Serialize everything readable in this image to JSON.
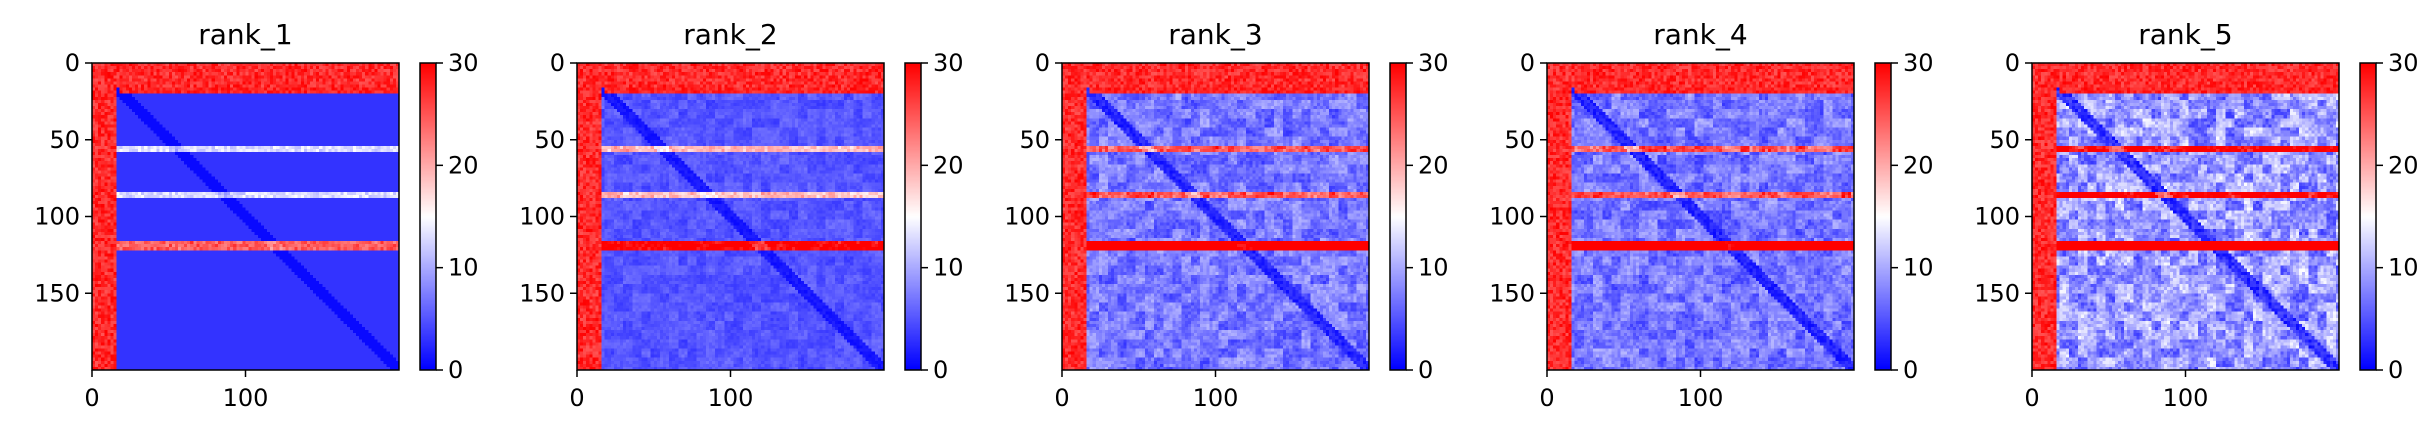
{
  "chart_data": [
    {
      "type": "heatmap",
      "title": "rank_1",
      "size": 200,
      "colormap": "bwr",
      "clim": [
        0,
        30
      ],
      "xticks": [
        0,
        100
      ],
      "yticks": [
        0,
        50,
        100,
        150
      ],
      "colorbar_ticks": [
        0,
        10,
        20,
        30
      ],
      "domain_boundaries": [
        22,
        55,
        85,
        118
      ],
      "intensity": 0
    },
    {
      "type": "heatmap",
      "title": "rank_2",
      "size": 200,
      "colormap": "bwr",
      "clim": [
        0,
        30
      ],
      "xticks": [
        0,
        100
      ],
      "yticks": [
        0,
        50,
        100,
        150
      ],
      "colorbar_ticks": [
        0,
        10,
        20,
        30
      ],
      "domain_boundaries": [
        22,
        55,
        85,
        118
      ],
      "intensity": 1
    },
    {
      "type": "heatmap",
      "title": "rank_3",
      "size": 200,
      "colormap": "bwr",
      "clim": [
        0,
        30
      ],
      "xticks": [
        0,
        100
      ],
      "yticks": [
        0,
        50,
        100,
        150
      ],
      "colorbar_ticks": [
        0,
        10,
        20,
        30
      ],
      "domain_boundaries": [
        22,
        55,
        85,
        118
      ],
      "intensity": 2
    },
    {
      "type": "heatmap",
      "title": "rank_4",
      "size": 200,
      "colormap": "bwr",
      "clim": [
        0,
        30
      ],
      "xticks": [
        0,
        100
      ],
      "yticks": [
        0,
        50,
        100,
        150
      ],
      "colorbar_ticks": [
        0,
        10,
        20,
        30
      ],
      "domain_boundaries": [
        22,
        55,
        85,
        118
      ],
      "intensity": 2
    },
    {
      "type": "heatmap",
      "title": "rank_5",
      "size": 200,
      "colormap": "bwr",
      "clim": [
        0,
        30
      ],
      "xticks": [
        0,
        100
      ],
      "yticks": [
        0,
        50,
        100,
        150
      ],
      "colorbar_ticks": [
        0,
        10,
        20,
        30
      ],
      "domain_boundaries": [
        22,
        55,
        85,
        118
      ],
      "intensity": 3
    }
  ]
}
